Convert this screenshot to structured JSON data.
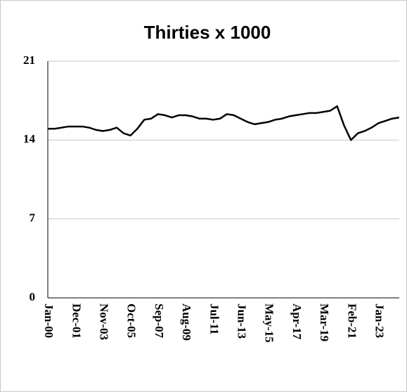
{
  "chart_data": {
    "type": "line",
    "title": "Thirties x 1000",
    "categories": [
      "Jan-00",
      null,
      null,
      null,
      "Dec-01",
      null,
      null,
      null,
      "Nov-03",
      null,
      null,
      null,
      "Oct-05",
      null,
      null,
      null,
      "Sep-07",
      null,
      null,
      null,
      "Aug-09",
      null,
      null,
      null,
      "Jul-11",
      null,
      null,
      null,
      "Jun-13",
      null,
      null,
      null,
      "May-15",
      null,
      null,
      null,
      "Apr-17",
      null,
      null,
      null,
      "Mar-19",
      null,
      null,
      null,
      "Feb-21",
      null,
      null,
      null,
      "Jan-23",
      null,
      null,
      null
    ],
    "series": [
      {
        "color": "#000000",
        "values": [
          15.0,
          15.0,
          15.1,
          15.2,
          15.2,
          15.2,
          15.1,
          14.9,
          14.8,
          14.9,
          15.1,
          14.6,
          14.4,
          15.0,
          15.8,
          15.9,
          16.3,
          16.2,
          16.0,
          16.2,
          16.2,
          16.1,
          15.9,
          15.9,
          15.8,
          15.9,
          16.3,
          16.2,
          15.9,
          15.6,
          15.4,
          15.5,
          15.6,
          15.8,
          15.9,
          16.1,
          16.2,
          16.3,
          16.4,
          16.4,
          16.5,
          16.6,
          17.0,
          15.3,
          14.0,
          14.6,
          14.8,
          15.1,
          15.5,
          15.7,
          15.9,
          16.0
        ]
      }
    ],
    "ylim": [
      0,
      21
    ],
    "yticks": [
      0,
      7,
      14,
      21
    ],
    "grid": true
  }
}
